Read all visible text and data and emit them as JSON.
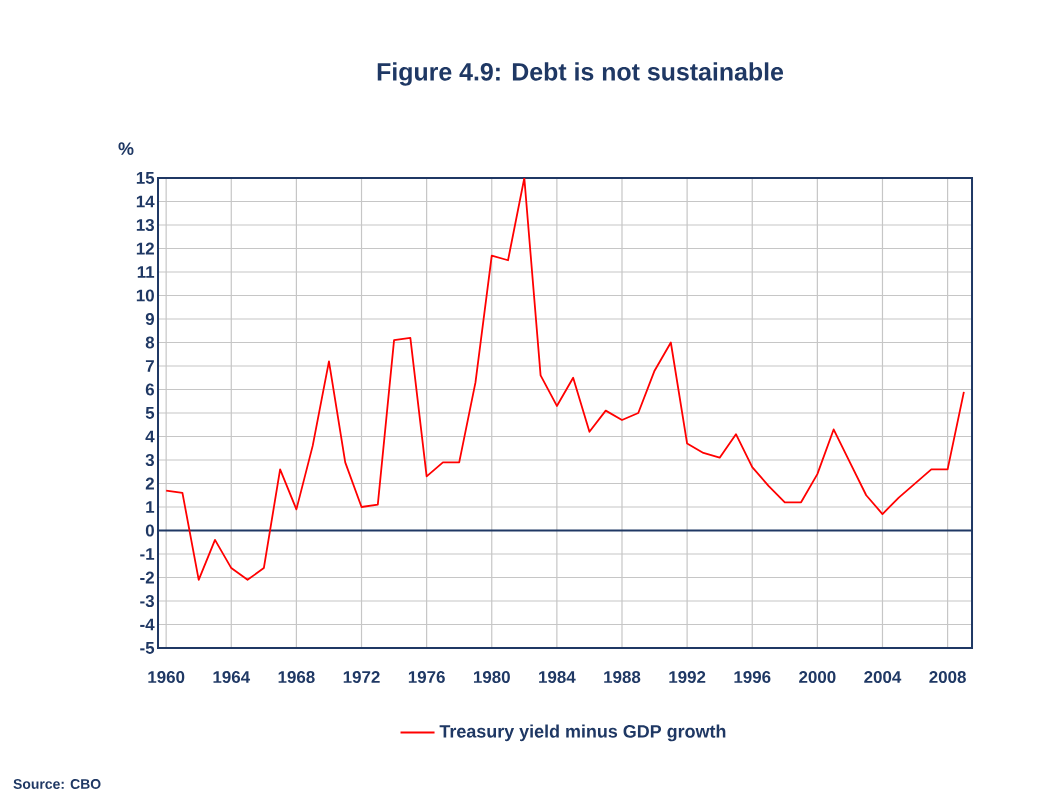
{
  "chart_data": {
    "type": "line",
    "title": "Figure 4.9: Debt is not sustainable",
    "ylabel": "%",
    "x": [
      1960,
      1961,
      1962,
      1963,
      1964,
      1965,
      1966,
      1967,
      1968,
      1969,
      1970,
      1971,
      1972,
      1973,
      1974,
      1975,
      1976,
      1977,
      1978,
      1979,
      1980,
      1981,
      1982,
      1983,
      1984,
      1985,
      1986,
      1987,
      1988,
      1989,
      1990,
      1991,
      1992,
      1993,
      1994,
      1995,
      1996,
      1997,
      1998,
      1999,
      2000,
      2001,
      2002,
      2003,
      2004,
      2005,
      2006,
      2007,
      2008,
      2009
    ],
    "series": [
      {
        "name": "Treasury yield minus GDP growth",
        "color": "#ff0000",
        "values": [
          1.7,
          1.6,
          -2.1,
          -0.4,
          -1.6,
          -2.1,
          -1.6,
          2.6,
          0.9,
          3.6,
          7.2,
          2.9,
          1.0,
          1.1,
          8.1,
          8.2,
          2.3,
          2.9,
          2.9,
          6.3,
          11.7,
          11.5,
          15.0,
          6.6,
          5.3,
          6.5,
          4.2,
          5.1,
          4.7,
          5.0,
          6.8,
          8.0,
          3.7,
          3.3,
          3.1,
          4.1,
          2.7,
          1.9,
          1.2,
          1.2,
          2.4,
          4.3,
          2.9,
          1.5,
          0.7,
          1.4,
          2.0,
          2.6,
          2.6,
          5.9
        ]
      }
    ],
    "xlim": [
      1959.5,
      2009.5
    ],
    "xticks": [
      1960,
      1964,
      1968,
      1972,
      1976,
      1980,
      1984,
      1988,
      1992,
      1996,
      2000,
      2004,
      2008
    ],
    "ylim": [
      -5,
      15
    ],
    "yticks": [
      -5,
      -4,
      -3,
      -2,
      -1,
      0,
      1,
      2,
      3,
      4,
      5,
      6,
      7,
      8,
      9,
      10,
      11,
      12,
      13,
      14,
      15
    ],
    "ref_lines": [
      {
        "axis": "y",
        "value": 0,
        "color": "#1f3864"
      }
    ],
    "grid": true,
    "legend": "bottom",
    "marker": "none",
    "line_style": "solid",
    "annotations": [
      "Source: CBO"
    ]
  }
}
